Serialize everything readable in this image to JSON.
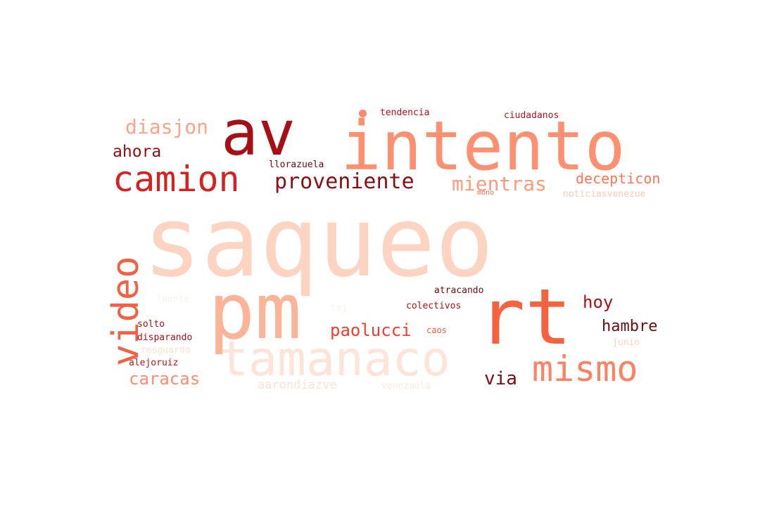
{
  "word_cloud": {
    "colormap": "Reds",
    "words": [
      {
        "text": "saqueo",
        "color": "#fdd3c1"
      },
      {
        "text": "intento",
        "color": "#fc9070"
      },
      {
        "text": "av",
        "color": "#a50f15"
      },
      {
        "text": "pm",
        "color": "#fcb499"
      },
      {
        "text": "rt",
        "color": "#f4623f"
      },
      {
        "text": "tamanaco",
        "color": "#fee4d8"
      },
      {
        "text": "camion",
        "color": "#d52221"
      },
      {
        "text": "video",
        "color": "#f26144"
      },
      {
        "text": "mismo",
        "color": "#fc8262"
      },
      {
        "text": "proveniente",
        "color": "#8b0e12"
      },
      {
        "text": "mientras",
        "color": "#fc9b7c"
      },
      {
        "text": "diasjon",
        "color": "#fca487"
      },
      {
        "text": "ahora",
        "color": "#8f0f13"
      },
      {
        "text": "decepticon",
        "color": "#fb7757"
      },
      {
        "text": "paolucci",
        "color": "#ee3e2f"
      },
      {
        "text": "caracas",
        "color": "#fc8e6e"
      },
      {
        "text": "hoy",
        "color": "#a91016"
      },
      {
        "text": "hambre",
        "color": "#6f0b10"
      },
      {
        "text": "via",
        "color": "#7e0c12"
      },
      {
        "text": "aarondiazve",
        "color": "#fde0d2"
      },
      {
        "text": "venezuela",
        "color": "#feeae0"
      },
      {
        "text": "tendencia",
        "color": "#b11218"
      },
      {
        "text": "ciudadanos",
        "color": "#b31218"
      },
      {
        "text": "llorazuela",
        "color": "#6b0a0f"
      },
      {
        "text": "noticiasvenezue",
        "color": "#fdc9b4"
      },
      {
        "text": "mono",
        "color": "#f86b4c"
      },
      {
        "text": "atracando",
        "color": "#7a0c11"
      },
      {
        "text": "colectivos",
        "color": "#b61318"
      },
      {
        "text": "fuente",
        "color": "#fff1ea"
      },
      {
        "text": "tsj",
        "color": "#fff0e9"
      },
      {
        "text": "solto",
        "color": "#a30f15"
      },
      {
        "text": "disparando",
        "color": "#b01117"
      },
      {
        "text": "resguardo",
        "color": "#fedfd0"
      },
      {
        "text": "alejoruiz",
        "color": "#bb1419"
      },
      {
        "text": "caos",
        "color": "#f05c42"
      },
      {
        "text": "junio",
        "color": "#fdd2c0"
      },
      {
        "text": "dot",
        "color": "#fc8a6a"
      }
    ]
  }
}
